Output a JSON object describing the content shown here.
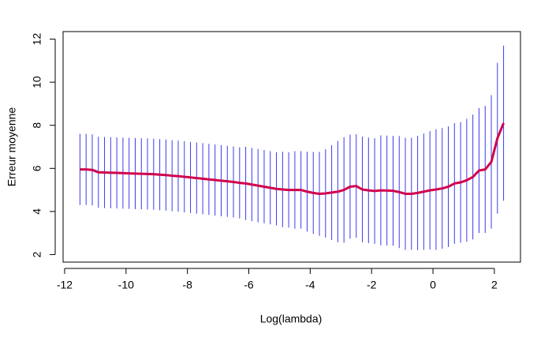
{
  "chart_data": {
    "type": "line",
    "xlabel": "Log(lambda)",
    "ylabel": "Erreur moyenne",
    "x": [
      -11.5,
      -11.3,
      -11.1,
      -10.9,
      -10.7,
      -10.5,
      -10.3,
      -10.1,
      -9.9,
      -9.7,
      -9.5,
      -9.3,
      -9.1,
      -8.9,
      -8.7,
      -8.5,
      -8.3,
      -8.1,
      -7.9,
      -7.7,
      -7.5,
      -7.3,
      -7.1,
      -6.9,
      -6.7,
      -6.5,
      -6.3,
      -6.1,
      -5.9,
      -5.7,
      -5.5,
      -5.3,
      -5.1,
      -4.9,
      -4.7,
      -4.5,
      -4.3,
      -4.1,
      -3.9,
      -3.7,
      -3.5,
      -3.3,
      -3.1,
      -2.9,
      -2.7,
      -2.5,
      -2.3,
      -2.1,
      -1.9,
      -1.7,
      -1.5,
      -1.3,
      -1.1,
      -0.9,
      -0.7,
      -0.5,
      -0.3,
      -0.1,
      0.1,
      0.3,
      0.5,
      0.7,
      0.9,
      1.1,
      1.3,
      1.5,
      1.7,
      1.9,
      2.1,
      2.3
    ],
    "values": [
      5.95,
      5.95,
      5.93,
      5.82,
      5.81,
      5.8,
      5.79,
      5.78,
      5.77,
      5.76,
      5.75,
      5.74,
      5.73,
      5.71,
      5.69,
      5.66,
      5.64,
      5.61,
      5.58,
      5.55,
      5.52,
      5.49,
      5.46,
      5.43,
      5.4,
      5.37,
      5.33,
      5.3,
      5.25,
      5.2,
      5.15,
      5.1,
      5.05,
      5.02,
      5.0,
      5.0,
      5.0,
      4.92,
      4.86,
      4.82,
      4.84,
      4.88,
      4.92,
      5.0,
      5.15,
      5.18,
      5.02,
      4.98,
      4.95,
      4.98,
      4.97,
      4.96,
      4.9,
      4.82,
      4.82,
      4.86,
      4.92,
      4.98,
      5.02,
      5.07,
      5.15,
      5.3,
      5.35,
      5.45,
      5.6,
      5.9,
      5.95,
      6.3,
      7.4,
      8.1
    ],
    "errors": [
      1.65,
      1.65,
      1.65,
      1.65,
      1.65,
      1.65,
      1.65,
      1.65,
      1.65,
      1.65,
      1.65,
      1.65,
      1.65,
      1.65,
      1.65,
      1.65,
      1.65,
      1.65,
      1.65,
      1.65,
      1.65,
      1.65,
      1.65,
      1.65,
      1.65,
      1.65,
      1.65,
      1.7,
      1.7,
      1.7,
      1.7,
      1.7,
      1.7,
      1.75,
      1.75,
      1.8,
      1.8,
      1.85,
      1.9,
      1.95,
      2.05,
      2.2,
      2.35,
      2.45,
      2.42,
      2.4,
      2.45,
      2.45,
      2.45,
      2.55,
      2.55,
      2.55,
      2.6,
      2.6,
      2.6,
      2.65,
      2.7,
      2.75,
      2.8,
      2.8,
      2.8,
      2.8,
      2.8,
      2.85,
      2.9,
      2.9,
      2.95,
      3.1,
      3.5,
      3.6
    ],
    "color": "#d1004b",
    "error_color": "#3a3af0",
    "xlim": [
      -12.05,
      2.85
    ],
    "ylim": [
      1.65,
      12.35
    ],
    "xticks": [
      -12,
      -10,
      -8,
      -6,
      -4,
      -2,
      0,
      2
    ],
    "yticks": [
      2,
      4,
      6,
      8,
      10,
      12
    ]
  }
}
